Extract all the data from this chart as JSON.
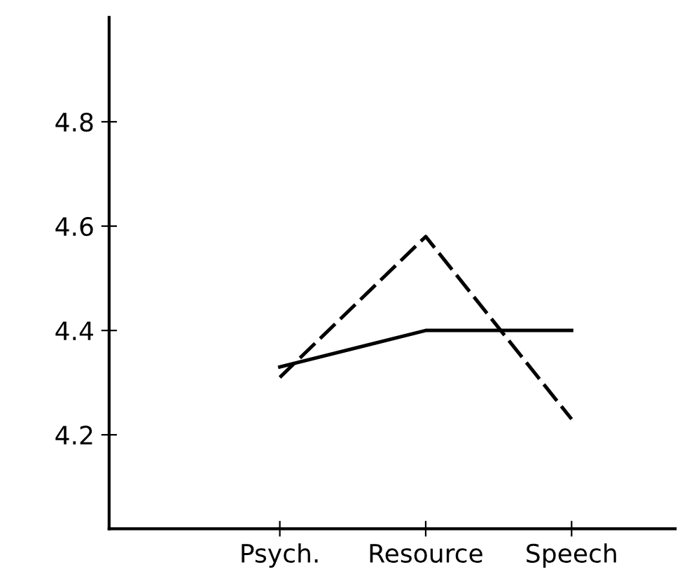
{
  "chart_data": {
    "type": "line",
    "categories": [
      "Psych.",
      "Resource",
      "Speech"
    ],
    "series": [
      {
        "color": "#000000",
        "line_style": "solid",
        "values": [
          4.33,
          4.4,
          4.4
        ]
      },
      {
        "color": "#000000",
        "line_style": "dashed",
        "values": [
          4.31,
          4.58,
          4.23
        ]
      }
    ],
    "ylim": [
      4.02,
      5.0
    ],
    "yticks": [
      4.2,
      4.4,
      4.6,
      4.8
    ],
    "grid": false,
    "marker": "none"
  }
}
